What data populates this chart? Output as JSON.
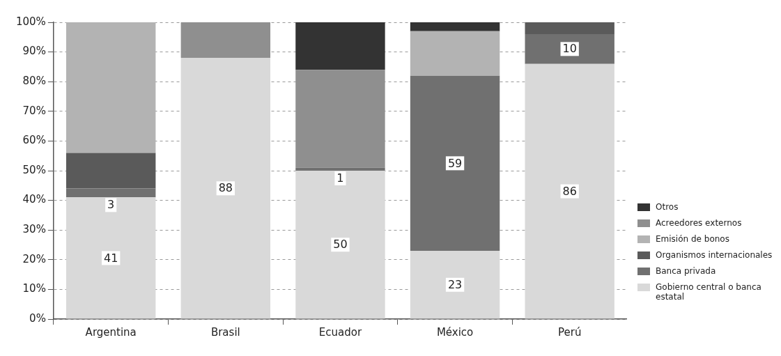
{
  "chart_data": {
    "type": "bar",
    "stacked": true,
    "categories": [
      "Argentina",
      "Brasil",
      "Ecuador",
      "México",
      "Perú"
    ],
    "series": [
      {
        "name": "Gobierno central o banca estatal",
        "color": "#d9d9d9",
        "values": [
          41,
          88,
          50,
          23,
          86
        ],
        "value_labels": [
          "41",
          "88",
          "50",
          "23",
          "86"
        ]
      },
      {
        "name": "Banca privada",
        "color": "#707070",
        "values": [
          3,
          0,
          1,
          59,
          10
        ],
        "value_labels": [
          "3",
          null,
          "1",
          "59",
          "10"
        ]
      },
      {
        "name": "Organismos internacionales",
        "color": "#5a5a5a",
        "values": [
          12,
          0,
          0,
          0,
          4
        ]
      },
      {
        "name": "Emisión de bonos",
        "color": "#b3b3b3",
        "values": [
          44,
          0,
          0,
          15,
          0
        ]
      },
      {
        "name": "Acreedores externos",
        "color": "#8f8f8f",
        "values": [
          0,
          12,
          33,
          0,
          0
        ]
      },
      {
        "name": "Otros",
        "color": "#333333",
        "values": [
          0,
          0,
          16,
          3,
          0
        ]
      }
    ],
    "ylim": [
      0,
      100
    ],
    "yticks": [
      {
        "value": 0,
        "label": "0%"
      },
      {
        "value": 10,
        "label": "10%"
      },
      {
        "value": 20,
        "label": "20%"
      },
      {
        "value": 30,
        "label": "30%"
      },
      {
        "value": 40,
        "label": "40%"
      },
      {
        "value": 50,
        "label": "50%"
      },
      {
        "value": 60,
        "label": "60%"
      },
      {
        "value": 70,
        "label": "70%"
      },
      {
        "value": 80,
        "label": "80%"
      },
      {
        "value": 90,
        "label": "90%"
      },
      {
        "value": 100,
        "label": "100%"
      }
    ],
    "grid": "y",
    "legend": "right"
  }
}
